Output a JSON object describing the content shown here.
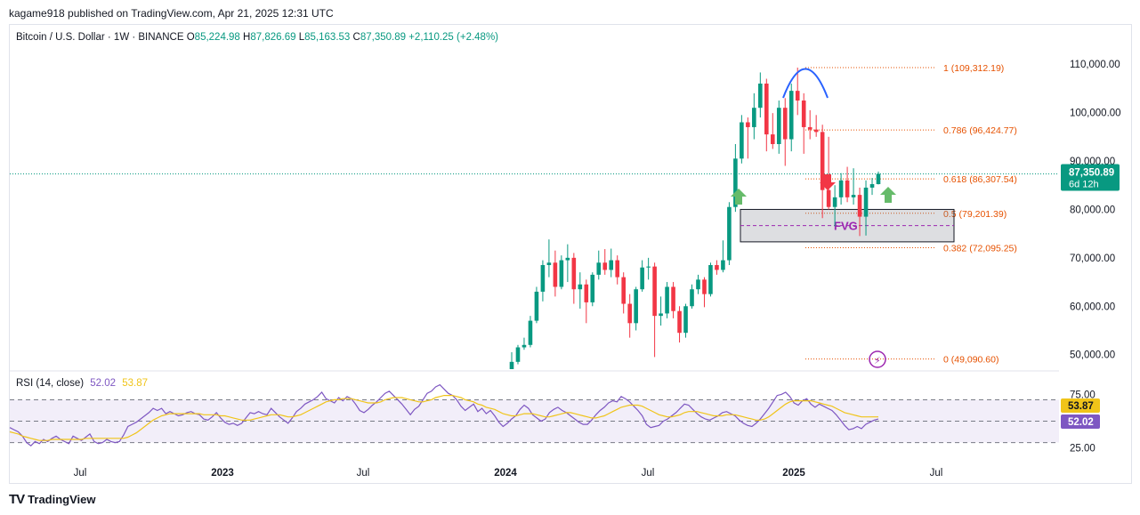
{
  "publisher_line": "kagame918 published on TradingView.com, Apr 21, 2025 12:31 UTC",
  "legend": {
    "symbol": "Bitcoin / U.S. Dollar · 1W · BINANCE",
    "o_label": "O",
    "o_value": "85,224.98",
    "h_label": "H",
    "h_value": "87,826.69",
    "l_label": "L",
    "l_value": "85,163.53",
    "c_label": "C",
    "c_value": "87,350.89",
    "change": "+2,110.25 (+2.48%)"
  },
  "rsi_legend": {
    "label": "RSI (14, close)",
    "rsi": "52.02",
    "ma": "53.87"
  },
  "footer": {
    "brand": "TradingView",
    "logo": "TV"
  },
  "colors": {
    "up": "#089981",
    "down": "#f23645",
    "rsi": "#7e57c2",
    "rsi_ma": "#f0c419",
    "fib": "#e65100",
    "arc": "#2962ff",
    "fvg": "#9c27b0"
  },
  "chart_data": [
    {
      "type": "candlestick",
      "title": "Bitcoin / U.S. Dollar · 1W · BINANCE",
      "y_axis_ticks": [
        "110,000.00",
        "100,000.00",
        "90,000.00",
        "80,000.00",
        "70,000.00",
        "60,000.00",
        "50,000.00"
      ],
      "y_tick_values": [
        110000,
        100000,
        90000,
        80000,
        70000,
        60000,
        50000
      ],
      "ylim": [
        47000,
        115000
      ],
      "x_axis_ticks": [
        "Jul",
        "2023",
        "Jul",
        "2024",
        "Jul",
        "2025",
        "Jul"
      ],
      "last_price_label": "87,350.89",
      "countdown_label": "6d 12h",
      "fib_levels": [
        {
          "label": "1 (109,312.19)",
          "value": 109312.19
        },
        {
          "label": "0.786 (96,424.77)",
          "value": 96424.77
        },
        {
          "label": "0.618 (86,307.54)",
          "value": 86307.54
        },
        {
          "label": "0.5 (79,201.39)",
          "value": 79201.39
        },
        {
          "label": "0.382 (72,095.25)",
          "value": 72095.25
        },
        {
          "label": "0 (49,090.60)",
          "value": 49090.6
        }
      ],
      "fvg_label": "FVG",
      "fvg_zone": [
        73300,
        80000
      ],
      "candles": [
        {
          "date": "2024-01",
          "o": 47000,
          "h": 50500,
          "l": 47000,
          "c": 48500
        },
        {
          "date": "2024-02a",
          "o": 48500,
          "h": 52000,
          "l": 48000,
          "c": 51500
        },
        {
          "date": "2024-02b",
          "o": 51500,
          "h": 53500,
          "l": 51000,
          "c": 52000
        },
        {
          "date": "2024-02c",
          "o": 52000,
          "h": 58000,
          "l": 51500,
          "c": 57000
        },
        {
          "date": "2024-03a",
          "o": 57000,
          "h": 64000,
          "l": 56500,
          "c": 63000
        },
        {
          "date": "2024-03b",
          "o": 63000,
          "h": 69500,
          "l": 61000,
          "c": 68500
        },
        {
          "date": "2024-03c",
          "o": 68500,
          "h": 73800,
          "l": 66000,
          "c": 69000
        },
        {
          "date": "2024-03d",
          "o": 69000,
          "h": 71500,
          "l": 62000,
          "c": 64000
        },
        {
          "date": "2024-03e",
          "o": 64000,
          "h": 70500,
          "l": 63500,
          "c": 69500
        },
        {
          "date": "2024-04a",
          "o": 69500,
          "h": 72800,
          "l": 65000,
          "c": 70000
        },
        {
          "date": "2024-04b",
          "o": 70000,
          "h": 71000,
          "l": 60500,
          "c": 63500
        },
        {
          "date": "2024-04c",
          "o": 63500,
          "h": 67000,
          "l": 59500,
          "c": 64500
        },
        {
          "date": "2024-05a",
          "o": 64500,
          "h": 65500,
          "l": 56500,
          "c": 60800
        },
        {
          "date": "2024-05b",
          "o": 60800,
          "h": 67000,
          "l": 60000,
          "c": 66500
        },
        {
          "date": "2024-05c",
          "o": 66500,
          "h": 71500,
          "l": 65500,
          "c": 69000
        },
        {
          "date": "2024-05d",
          "o": 69000,
          "h": 71800,
          "l": 66500,
          "c": 67500
        },
        {
          "date": "2024-06a",
          "o": 67500,
          "h": 71900,
          "l": 66000,
          "c": 69500
        },
        {
          "date": "2024-06b",
          "o": 69500,
          "h": 70500,
          "l": 64500,
          "c": 66000
        },
        {
          "date": "2024-06c",
          "o": 66000,
          "h": 67000,
          "l": 58500,
          "c": 60500
        },
        {
          "date": "2024-07a",
          "o": 60500,
          "h": 62500,
          "l": 53500,
          "c": 56500
        },
        {
          "date": "2024-07b",
          "o": 56500,
          "h": 64000,
          "l": 55000,
          "c": 63500
        },
        {
          "date": "2024-07c",
          "o": 63500,
          "h": 69500,
          "l": 63000,
          "c": 68000
        },
        {
          "date": "2024-07d",
          "o": 68000,
          "h": 70000,
          "l": 65500,
          "c": 68200
        },
        {
          "date": "2024-08a",
          "o": 68200,
          "h": 69000,
          "l": 49500,
          "c": 58000
        },
        {
          "date": "2024-08b",
          "o": 58000,
          "h": 62000,
          "l": 56000,
          "c": 58500
        },
        {
          "date": "2024-08c",
          "o": 58500,
          "h": 65000,
          "l": 57500,
          "c": 64000
        },
        {
          "date": "2024-08d",
          "o": 64000,
          "h": 65000,
          "l": 57500,
          "c": 59000
        },
        {
          "date": "2024-09a",
          "o": 59000,
          "h": 60000,
          "l": 52500,
          "c": 54500
        },
        {
          "date": "2024-09b",
          "o": 54500,
          "h": 60500,
          "l": 53500,
          "c": 60000
        },
        {
          "date": "2024-09c",
          "o": 60000,
          "h": 64500,
          "l": 59500,
          "c": 63500
        },
        {
          "date": "2024-09d",
          "o": 63500,
          "h": 66500,
          "l": 62500,
          "c": 65500
        },
        {
          "date": "2024-10a",
          "o": 65500,
          "h": 66000,
          "l": 59800,
          "c": 62500
        },
        {
          "date": "2024-10b",
          "o": 62500,
          "h": 69000,
          "l": 62000,
          "c": 68500
        },
        {
          "date": "2024-10c",
          "o": 68500,
          "h": 69500,
          "l": 66500,
          "c": 67500
        },
        {
          "date": "2024-10d",
          "o": 67500,
          "h": 73600,
          "l": 67000,
          "c": 69500
        },
        {
          "date": "2024-11a",
          "o": 69500,
          "h": 81500,
          "l": 68500,
          "c": 80500
        },
        {
          "date": "2024-11b",
          "o": 80500,
          "h": 93500,
          "l": 79500,
          "c": 90500
        },
        {
          "date": "2024-11c",
          "o": 90500,
          "h": 99500,
          "l": 89500,
          "c": 98000
        },
        {
          "date": "2024-11d",
          "o": 98000,
          "h": 99000,
          "l": 90500,
          "c": 97000
        },
        {
          "date": "2024-12a",
          "o": 97000,
          "h": 104000,
          "l": 94500,
          "c": 101000
        },
        {
          "date": "2024-12b",
          "o": 101000,
          "h": 108300,
          "l": 99000,
          "c": 106000
        },
        {
          "date": "2024-12c",
          "o": 106000,
          "h": 107000,
          "l": 92000,
          "c": 95500
        },
        {
          "date": "2024-12d",
          "o": 95500,
          "h": 99900,
          "l": 92500,
          "c": 93500
        },
        {
          "date": "2025-01a",
          "o": 93500,
          "h": 102500,
          "l": 91500,
          "c": 101000
        },
        {
          "date": "2025-01b",
          "o": 101000,
          "h": 103000,
          "l": 89000,
          "c": 94500
        },
        {
          "date": "2025-01c",
          "o": 94500,
          "h": 106000,
          "l": 92000,
          "c": 104500
        },
        {
          "date": "2025-01d",
          "o": 104500,
          "h": 109300,
          "l": 99500,
          "c": 102500
        },
        {
          "date": "2025-02a",
          "o": 102500,
          "h": 104000,
          "l": 91500,
          "c": 97000
        },
        {
          "date": "2025-02b",
          "o": 97000,
          "h": 100500,
          "l": 94500,
          "c": 96500
        },
        {
          "date": "2025-02c",
          "o": 96500,
          "h": 99500,
          "l": 95000,
          "c": 96000
        },
        {
          "date": "2025-02d",
          "o": 96000,
          "h": 97500,
          "l": 78200,
          "c": 84000
        },
        {
          "date": "2025-03a",
          "o": 84000,
          "h": 95000,
          "l": 80000,
          "c": 80500
        },
        {
          "date": "2025-03b",
          "o": 80500,
          "h": 85000,
          "l": 76500,
          "c": 82500
        },
        {
          "date": "2025-03c",
          "o": 82500,
          "h": 87500,
          "l": 81000,
          "c": 86000
        },
        {
          "date": "2025-03d",
          "o": 86000,
          "h": 88800,
          "l": 81500,
          "c": 82500
        },
        {
          "date": "2025-03e",
          "o": 82500,
          "h": 88500,
          "l": 81000,
          "c": 83000
        },
        {
          "date": "2025-04a",
          "o": 83000,
          "h": 84500,
          "l": 74500,
          "c": 78500
        },
        {
          "date": "2025-04b",
          "o": 78500,
          "h": 86000,
          "l": 74600,
          "c": 84500
        },
        {
          "date": "2025-04c",
          "o": 84500,
          "h": 86500,
          "l": 83000,
          "c": 85225
        },
        {
          "date": "2025-04d",
          "o": 85225,
          "h": 87827,
          "l": 85164,
          "c": 87351
        }
      ]
    },
    {
      "type": "line",
      "title": "RSI (14, close)",
      "y_axis_ticks": [
        "75.00",
        "25.00"
      ],
      "y_tick_values": [
        75,
        25
      ],
      "ylim": [
        18,
        82
      ],
      "bands": [
        70,
        50,
        30
      ],
      "last_labels": {
        "ma": "53.87",
        "rsi": "52.02"
      },
      "series": [
        {
          "name": "RSI",
          "values": [
            44,
            42,
            40,
            36,
            30,
            27,
            31,
            29,
            33,
            31,
            34,
            36,
            33,
            31,
            29,
            36,
            34,
            32,
            35,
            38,
            31,
            29,
            30,
            33,
            31,
            30,
            31,
            37,
            45,
            47,
            49,
            52,
            55,
            58,
            62,
            60,
            62,
            57,
            59,
            57,
            55,
            56,
            58,
            59,
            57,
            56,
            52,
            51,
            54,
            58,
            53,
            49,
            47,
            48,
            46,
            48,
            53,
            58,
            57,
            59,
            57,
            56,
            62,
            58,
            54,
            51,
            48,
            53,
            59,
            62,
            66,
            68,
            70,
            73,
            77,
            71,
            69,
            67,
            72,
            69,
            73,
            71,
            66,
            60,
            58,
            61,
            65,
            68,
            72,
            76,
            78,
            74,
            70,
            66,
            61,
            56,
            61,
            64,
            70,
            76,
            78,
            82,
            84,
            80,
            76,
            74,
            70,
            64,
            60,
            63,
            66,
            59,
            62,
            57,
            60,
            55,
            49,
            45,
            48,
            52,
            55,
            61,
            65,
            62,
            56,
            53,
            50,
            52,
            58,
            61,
            63,
            60,
            58,
            55,
            52,
            49,
            47,
            47,
            51,
            56,
            60,
            63,
            67,
            69,
            68,
            73,
            71,
            68,
            64,
            60,
            55,
            47,
            44,
            45,
            46,
            50,
            52,
            55,
            58,
            62,
            66,
            65,
            61,
            57,
            54,
            52,
            51,
            53,
            55,
            58,
            59,
            57,
            55,
            51,
            48,
            46,
            45,
            48,
            52,
            57,
            62,
            68,
            74,
            75,
            77,
            73,
            67,
            65,
            69,
            71,
            66,
            63,
            66,
            64,
            62,
            60,
            56,
            51,
            46,
            42,
            43,
            45,
            43,
            47,
            49,
            51,
            52
          ]
        },
        {
          "name": "RSI-based MA",
          "values": [
            40,
            39,
            38,
            36,
            35,
            34,
            33,
            32,
            32,
            32,
            33,
            33,
            33,
            33,
            33,
            33,
            33,
            33,
            34,
            34,
            34,
            34,
            34,
            34,
            34,
            34,
            34,
            34,
            35,
            37,
            39,
            42,
            45,
            48,
            51,
            53,
            55,
            56,
            57,
            57,
            57,
            57,
            57,
            57,
            57,
            57,
            56,
            56,
            56,
            56,
            55,
            55,
            54,
            53,
            52,
            51,
            51,
            51,
            52,
            53,
            54,
            55,
            56,
            56,
            56,
            55,
            54,
            54,
            55,
            56,
            58,
            60,
            62,
            64,
            66,
            68,
            69,
            70,
            70,
            71,
            71,
            71,
            70,
            69,
            68,
            67,
            67,
            67,
            68,
            70,
            71,
            72,
            72,
            72,
            71,
            70,
            69,
            68,
            68,
            69,
            70,
            72,
            73,
            74,
            74,
            74,
            73,
            72,
            70,
            69,
            68,
            66,
            65,
            63,
            62,
            61,
            59,
            57,
            56,
            55,
            55,
            56,
            57,
            57,
            57,
            56,
            55,
            54,
            54,
            55,
            56,
            57,
            58,
            58,
            57,
            56,
            55,
            54,
            53,
            53,
            54,
            55,
            57,
            59,
            61,
            63,
            64,
            65,
            65,
            65,
            64,
            62,
            60,
            58,
            56,
            55,
            54,
            54,
            55,
            56,
            58,
            59,
            59,
            59,
            58,
            57,
            56,
            55,
            55,
            55,
            56,
            56,
            56,
            55,
            54,
            53,
            52,
            51,
            51,
            52,
            54,
            57,
            60,
            63,
            66,
            68,
            69,
            69,
            69,
            69,
            69,
            68,
            67,
            66,
            65,
            64,
            62,
            60,
            58,
            57,
            56,
            55,
            54,
            54,
            54,
            54,
            54
          ]
        }
      ]
    }
  ]
}
